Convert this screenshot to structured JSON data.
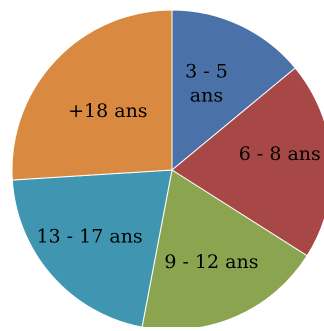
{
  "chart_data": {
    "type": "pie",
    "title": "",
    "categories": [
      "3 - 5 ans",
      "6 - 8 ans",
      "9 - 12 ans",
      "13 - 17 ans",
      "+18 ans"
    ],
    "values": [
      14,
      20,
      19,
      21,
      26
    ],
    "unit": "percent (estimated from slice angles)",
    "colors": [
      "#4a72a8",
      "#a84846",
      "#8aa450",
      "#4096b0",
      "#d98a40"
    ],
    "legend": "none",
    "start_angle_deg": 0,
    "direction": "clockwise",
    "labels_inside": true,
    "label_lines": [
      [
        "3 - 5",
        "ans"
      ],
      [
        "6 - 8 ans"
      ],
      [
        "9 - 12 ans"
      ],
      [
        "13 - 17 ans"
      ],
      [
        "+18 ans"
      ]
    ]
  }
}
